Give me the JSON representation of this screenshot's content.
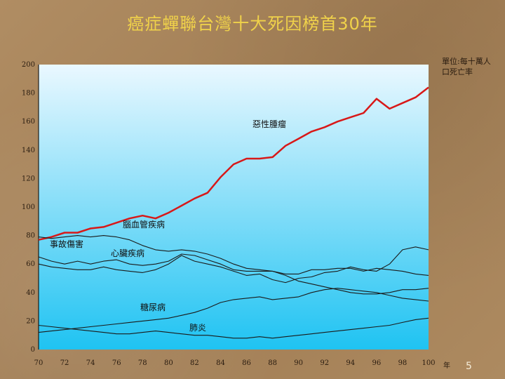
{
  "slide": {
    "title": "癌症蟬聯台灣十大死因榜首30年",
    "page_number": "5",
    "unit_label": "單位:每十萬人口死亡率"
  },
  "chart_data": {
    "type": "line",
    "ylim": [
      0,
      200
    ],
    "yticks": [
      0,
      20,
      40,
      60,
      80,
      100,
      120,
      140,
      160,
      180,
      200
    ],
    "xlim": [
      70,
      100
    ],
    "xticks": [
      70,
      72,
      74,
      76,
      78,
      80,
      82,
      84,
      86,
      88,
      90,
      92,
      94,
      96,
      98,
      100
    ],
    "xunit": "年",
    "grid": false,
    "x": [
      70,
      71,
      72,
      73,
      74,
      75,
      76,
      77,
      78,
      79,
      80,
      81,
      82,
      83,
      84,
      85,
      86,
      87,
      88,
      89,
      90,
      91,
      92,
      93,
      94,
      95,
      96,
      97,
      98,
      99,
      100
    ],
    "series": [
      {
        "name": "惡性腫瘤",
        "color": "#d81818",
        "values": [
          77,
          79,
          82,
          82,
          85,
          86,
          89,
          92,
          94,
          92,
          96,
          101,
          106,
          110,
          121,
          130,
          134,
          134,
          135,
          143,
          148,
          153,
          156,
          160,
          163,
          166,
          176,
          169,
          173,
          177,
          184
        ]
      },
      {
        "name": "腦血管疾病",
        "color": "#1a1a1a",
        "values": [
          79,
          78,
          79,
          80,
          79,
          80,
          79,
          77,
          73,
          70,
          69,
          70,
          69,
          67,
          64,
          60,
          57,
          56,
          55,
          53,
          53,
          56,
          56,
          57,
          57,
          55,
          57,
          56,
          55,
          53,
          52
        ]
      },
      {
        "name": "事故傷害",
        "color": "#1a1a1a",
        "values": [
          65,
          62,
          60,
          62,
          60,
          62,
          63,
          60,
          59,
          60,
          62,
          67,
          66,
          63,
          60,
          56,
          55,
          55,
          55,
          52,
          48,
          46,
          44,
          42,
          40,
          39,
          39,
          40,
          42,
          42,
          43
        ]
      },
      {
        "name": "心臟疾病",
        "color": "#1a1a1a",
        "values": [
          60,
          58,
          57,
          56,
          56,
          58,
          56,
          55,
          54,
          56,
          60,
          66,
          62,
          60,
          58,
          55,
          52,
          53,
          49,
          47,
          50,
          51,
          54,
          55,
          58,
          56,
          55,
          60,
          70,
          72,
          70
        ]
      },
      {
        "name": "糖尿病",
        "color": "#1a1a1a",
        "values": [
          12,
          13,
          14,
          15,
          16,
          17,
          18,
          19,
          20,
          21,
          22,
          24,
          26,
          29,
          33,
          35,
          36,
          37,
          35,
          36,
          37,
          40,
          42,
          43,
          42,
          41,
          40,
          38,
          36,
          35,
          34
        ]
      },
      {
        "name": "肺炎",
        "color": "#1a1a1a",
        "values": [
          17,
          16,
          15,
          14,
          13,
          12,
          11,
          11,
          12,
          13,
          12,
          11,
          10,
          10,
          9,
          8,
          8,
          9,
          8,
          9,
          10,
          11,
          12,
          13,
          14,
          15,
          16,
          17,
          19,
          21,
          22
        ]
      }
    ],
    "labels": [
      {
        "text": "惡性腫瘤"
      },
      {
        "text": "腦血管疾病"
      },
      {
        "text": "事故傷害"
      },
      {
        "text": "心臟疾病"
      },
      {
        "text": "糖尿病"
      },
      {
        "text": "肺炎"
      }
    ]
  }
}
